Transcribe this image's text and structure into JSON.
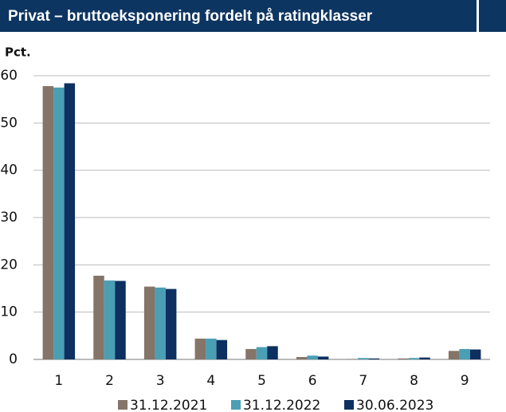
{
  "chart_data": {
    "type": "bar",
    "title": "Privat – bruttoeksponering fordelt på ratingklasser",
    "y_label": "Pct.",
    "categories": [
      "1",
      "2",
      "3",
      "4",
      "5",
      "6",
      "7",
      "8",
      "9"
    ],
    "series": [
      {
        "name": "31.12.2021",
        "color": "#857468",
        "values": [
          57.8,
          17.7,
          15.4,
          4.4,
          2.2,
          0.5,
          0.1,
          0.2,
          1.8
        ]
      },
      {
        "name": "31.12.2022",
        "color": "#4a9fb5",
        "values": [
          57.5,
          16.7,
          15.2,
          4.4,
          2.6,
          0.8,
          0.3,
          0.3,
          2.2
        ]
      },
      {
        "name": "30.06.2023",
        "color": "#0d3060",
        "values": [
          58.4,
          16.6,
          14.9,
          4.1,
          2.8,
          0.6,
          0.2,
          0.4,
          2.1
        ]
      }
    ],
    "ylim": [
      0,
      60
    ],
    "yticks": [
      0,
      10,
      20,
      30,
      40,
      50,
      60
    ],
    "grid": true,
    "legend": "bottom"
  }
}
